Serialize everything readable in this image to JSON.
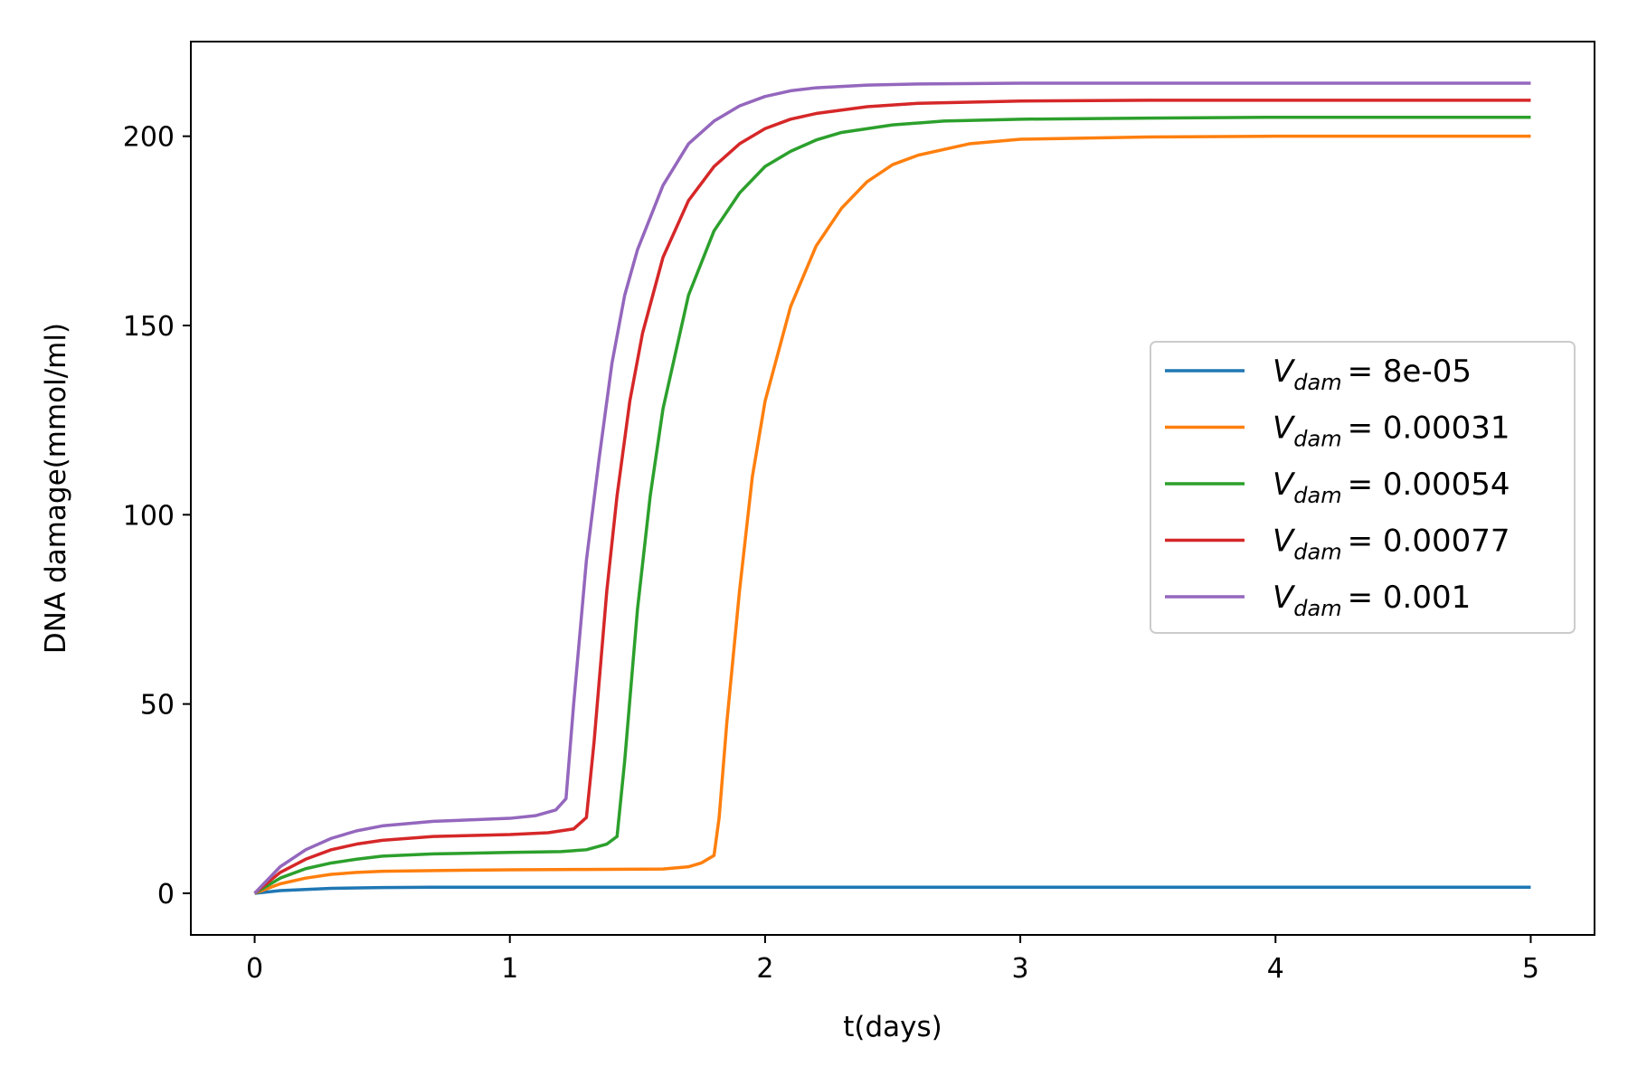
{
  "chart_data": {
    "type": "line",
    "title": "",
    "xlabel": "t(days)",
    "ylabel": "DNA damage(mmol/ml)",
    "xlim": [
      -0.25,
      5.25
    ],
    "ylim": [
      -11,
      225
    ],
    "xticks": [
      0,
      1,
      2,
      3,
      4,
      5
    ],
    "xtick_labels": [
      "0",
      "1",
      "2",
      "3",
      "4",
      "5"
    ],
    "yticks": [
      0,
      50,
      100,
      150,
      200
    ],
    "ytick_labels": [
      "0",
      "50",
      "100",
      "150",
      "200"
    ],
    "grid": false,
    "legend_position": "center-right",
    "series": [
      {
        "name": "V_dam = 8e-05",
        "legend_var": "V",
        "legend_sub": "dam",
        "legend_value": "= 8e-05",
        "color": "#1f77b4",
        "x": [
          0,
          0.1,
          0.2,
          0.3,
          0.5,
          0.7,
          1.0,
          2.0,
          3.0,
          4.0,
          5.0
        ],
        "y": [
          0,
          0.7,
          1.0,
          1.3,
          1.5,
          1.6,
          1.6,
          1.6,
          1.6,
          1.6,
          1.6
        ]
      },
      {
        "name": "V_dam = 0.00031",
        "legend_var": "V",
        "legend_sub": "dam",
        "legend_value": "= 0.00031",
        "color": "#ff7f0e",
        "x": [
          0,
          0.1,
          0.2,
          0.3,
          0.4,
          0.5,
          0.7,
          1.0,
          1.3,
          1.6,
          1.7,
          1.75,
          1.8,
          1.82,
          1.85,
          1.9,
          1.95,
          2.0,
          2.1,
          2.2,
          2.3,
          2.4,
          2.5,
          2.6,
          2.8,
          3.0,
          3.5,
          4.0,
          5.0
        ],
        "y": [
          0,
          2.5,
          4.0,
          5.0,
          5.5,
          5.8,
          6.0,
          6.2,
          6.3,
          6.4,
          7.0,
          8.0,
          10.0,
          20.0,
          45.0,
          80.0,
          110.0,
          130.0,
          155.0,
          171.0,
          181.0,
          188.0,
          192.5,
          195.0,
          198.0,
          199.2,
          199.8,
          200.0,
          200.0
        ]
      },
      {
        "name": "V_dam = 0.00054",
        "legend_var": "V",
        "legend_sub": "dam",
        "legend_value": "= 0.00054",
        "color": "#2ca02c",
        "x": [
          0,
          0.1,
          0.2,
          0.3,
          0.4,
          0.5,
          0.7,
          1.0,
          1.2,
          1.3,
          1.38,
          1.42,
          1.45,
          1.5,
          1.55,
          1.6,
          1.7,
          1.8,
          1.9,
          2.0,
          2.1,
          2.2,
          2.3,
          2.5,
          2.7,
          3.0,
          3.5,
          4.0,
          5.0
        ],
        "y": [
          0,
          4.0,
          6.5,
          8.0,
          9.0,
          9.8,
          10.4,
          10.8,
          11.0,
          11.5,
          13.0,
          15.0,
          35.0,
          75.0,
          105.0,
          128.0,
          158.0,
          175.0,
          185.0,
          192.0,
          196.0,
          199.0,
          201.0,
          203.0,
          204.0,
          204.5,
          204.8,
          205.0,
          205.0
        ]
      },
      {
        "name": "V_dam = 0.00077",
        "legend_var": "V",
        "legend_sub": "dam",
        "legend_value": "= 0.00077",
        "color": "#d62728",
        "x": [
          0,
          0.1,
          0.2,
          0.3,
          0.4,
          0.5,
          0.7,
          1.0,
          1.15,
          1.25,
          1.3,
          1.33,
          1.38,
          1.42,
          1.47,
          1.52,
          1.6,
          1.7,
          1.8,
          1.9,
          2.0,
          2.1,
          2.2,
          2.4,
          2.6,
          3.0,
          3.5,
          4.0,
          5.0
        ],
        "y": [
          0,
          5.5,
          9.0,
          11.5,
          13.0,
          14.0,
          15.0,
          15.5,
          16.0,
          17.0,
          20.0,
          40.0,
          80.0,
          105.0,
          130.0,
          148.0,
          168.0,
          183.0,
          192.0,
          198.0,
          202.0,
          204.5,
          206.0,
          207.8,
          208.7,
          209.3,
          209.5,
          209.5,
          209.5
        ]
      },
      {
        "name": "V_dam = 0.001",
        "legend_var": "V",
        "legend_sub": "dam",
        "legend_value": "= 0.001",
        "color": "#9467bd",
        "x": [
          0,
          0.1,
          0.2,
          0.3,
          0.4,
          0.5,
          0.7,
          1.0,
          1.1,
          1.18,
          1.22,
          1.25,
          1.3,
          1.35,
          1.4,
          1.45,
          1.5,
          1.6,
          1.7,
          1.8,
          1.9,
          2.0,
          2.1,
          2.2,
          2.4,
          2.6,
          3.0,
          3.5,
          4.0,
          5.0
        ],
        "y": [
          0,
          7.0,
          11.5,
          14.5,
          16.5,
          17.8,
          19.0,
          19.8,
          20.5,
          22.0,
          25.0,
          50.0,
          88.0,
          115.0,
          140.0,
          158.0,
          170.0,
          187.0,
          198.0,
          204.0,
          208.0,
          210.5,
          212.0,
          212.8,
          213.5,
          213.8,
          214.0,
          214.0,
          214.0,
          214.0
        ]
      }
    ]
  }
}
